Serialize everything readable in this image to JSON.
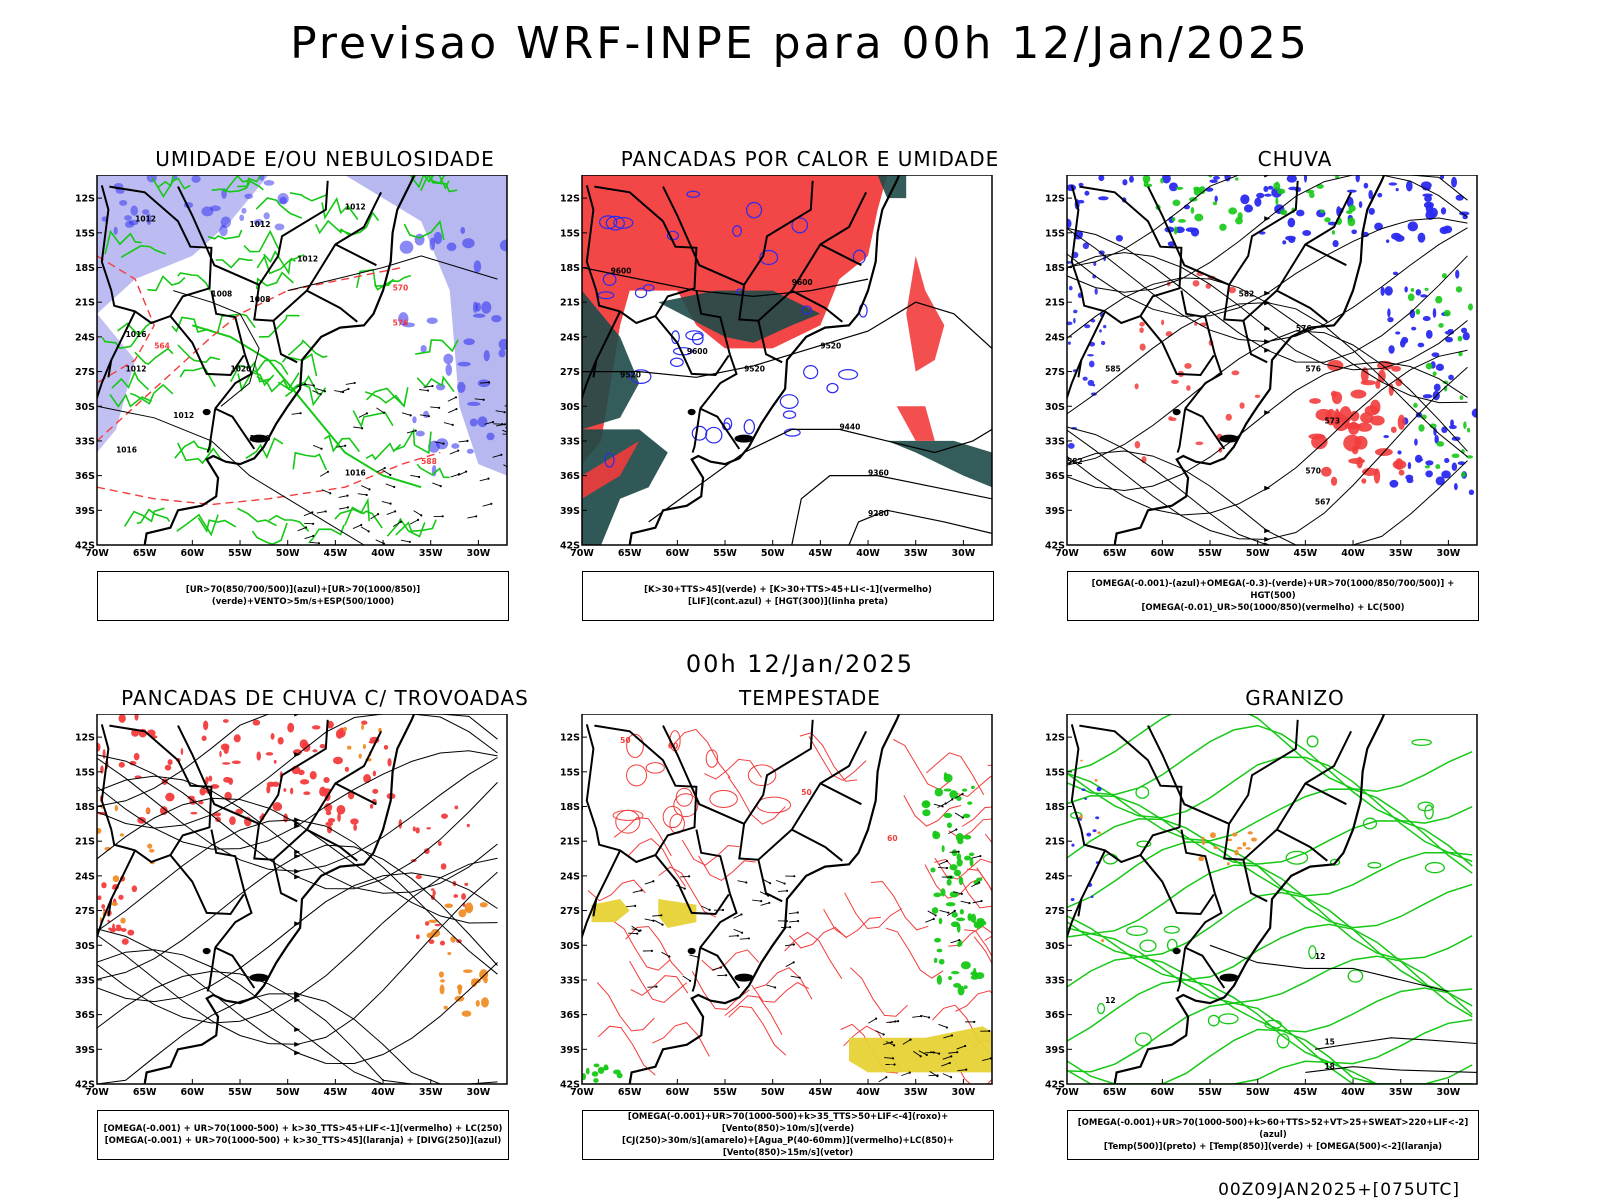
{
  "title": "Previsao WRF-INPE  para 00h 12/Jan/2025",
  "mid_title": "00h 12/Jan/2025",
  "footer": "00Z09JAN2025+[075UTC]",
  "axes": {
    "lat_labels": [
      "12S",
      "15S",
      "18S",
      "21S",
      "24S",
      "27S",
      "30S",
      "33S",
      "36S",
      "39S",
      "42S"
    ],
    "lon_labels": [
      "70W",
      "65W",
      "60W",
      "55W",
      "50W",
      "45W",
      "40W",
      "35W",
      "30W"
    ]
  },
  "colors": {
    "red": "#f23c3c",
    "blue": "#2a2af0",
    "green": "#16c816",
    "lavender": "#b0b0f0",
    "teal": "#1e4a48",
    "orange": "#f08c28",
    "yellow": "#e6d234"
  },
  "panels": [
    {
      "id": "umidade",
      "title": "UMIDADE E/OU NEBULOSIDADE",
      "legend": [
        "[UR>70(850/700/500)](azul)+[UR>70(1000/850)](verde)+VENTO>5m/s+ESP(500/1000)"
      ],
      "labels": [
        "1012",
        "1012",
        "1012",
        "1012",
        "1008",
        "1008",
        "1016",
        "1020",
        "1012",
        "1016",
        "1020",
        "1016",
        "1012",
        "576",
        "570",
        "564",
        "588"
      ]
    },
    {
      "id": "pancadas",
      "title": "PANCADAS POR CALOR E UMIDADE",
      "legend": [
        "[K>30+TTS>45](verde) + [K>30+TTS>45+LI<-1](vermelho)",
        "[LIF](cont.azul) + [HGT(300)](linha preta)"
      ],
      "labels": [
        "9600",
        "9600",
        "9600",
        "9520",
        "9520",
        "9440",
        "9360",
        "9280",
        "9520"
      ]
    },
    {
      "id": "chuva",
      "title": "CHUVA",
      "legend": [
        "[OMEGA(-0.001)-(azul)+OMEGA(-0.3)-(verde)+UR>70(1000/850/700/500)] + HGT(500)",
        "[OMEGA(-0.01)_UR>50(1000/850)(vermelho) + LC(500)"
      ],
      "labels": [
        "582",
        "576",
        "576",
        "573",
        "570",
        "567",
        "582",
        "585"
      ]
    },
    {
      "id": "trovoadas",
      "title": "PANCADAS DE CHUVA C/ TROVOADAS",
      "legend": [
        "[OMEGA(-0.001) + UR>70(1000-500) + k>30_TTS>45+LIF<-1](vermelho) + LC(250)",
        "[OMEGA(-0.001) + UR>70(1000-500) + k>30_TTS>45](laranja) + [DIVG(250)](azul)"
      ],
      "labels": []
    },
    {
      "id": "tempestade",
      "title": "TEMPESTADE",
      "legend": [
        "[OMEGA(-0.001)+UR>70(1000-500)+k>35_TTS>50+LIF<-4](roxo)+[Vento(850)>10m/s](verde)",
        "[CJ(250)>30m/s](amarelo)+[Agua_P(40-60mm)](vermelho)+LC(850)+[Vento(850)>15m/s](vetor)"
      ],
      "labels": [
        "50",
        "60",
        "50",
        "60"
      ]
    },
    {
      "id": "granizo",
      "title": "GRANIZO",
      "legend": [
        "[OMEGA(-0.001)+UR>70(1000-500)+k>60+TTS>52+VT>25+SWEAT>220+LIF<-2](azul)",
        "[Temp(500)](preto) + [Temp(850)](verde) + [OMEGA(500)<-2](laranja)"
      ],
      "labels": [
        "12",
        "12",
        "15",
        "18"
      ]
    }
  ]
}
